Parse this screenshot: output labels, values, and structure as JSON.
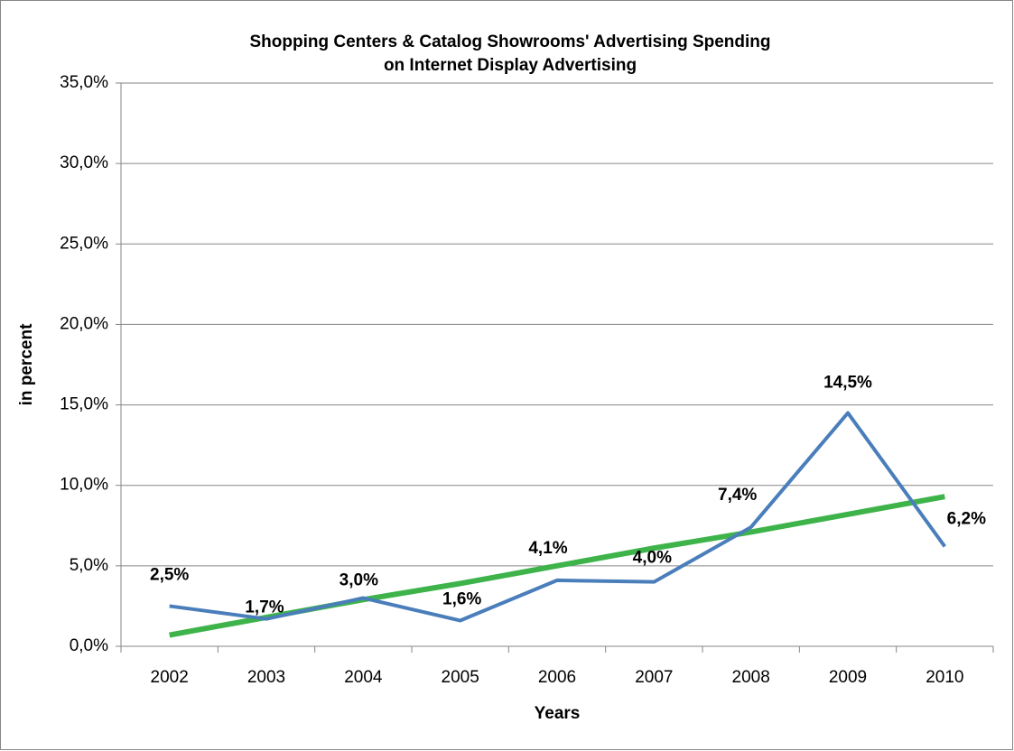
{
  "chart_data": {
    "type": "line",
    "title": [
      "Shopping Centers & Catalog Showrooms' Advertising Spending",
      "on Internet Display Advertising"
    ],
    "x_label": "Years",
    "y_label": "in percent",
    "categories": [
      "2002",
      "2003",
      "2004",
      "2005",
      "2006",
      "2007",
      "2008",
      "2009",
      "2010"
    ],
    "series": [
      {
        "color": "#4a7ebb",
        "values": [
          2.5,
          1.7,
          3.0,
          1.6,
          4.1,
          4.0,
          7.4,
          14.5,
          6.2
        ],
        "value_labels": [
          "2,5%",
          "1,7%",
          "3,0%",
          "1,6%",
          "4,1%",
          "4,0%",
          "7,4%",
          "14,5%",
          "6,2%"
        ]
      },
      {
        "color": "#3db34a",
        "values": [
          0.7,
          1.8,
          2.9,
          3.9,
          5.0,
          6.1,
          7.1,
          8.2,
          9.3
        ]
      }
    ],
    "ylim": [
      0,
      35
    ],
    "yticks": [
      {
        "value": 0,
        "label": "0,0%"
      },
      {
        "value": 5,
        "label": "5,0%"
      },
      {
        "value": 10,
        "label": "10,0%"
      },
      {
        "value": 15,
        "label": "15,0%"
      },
      {
        "value": 20,
        "label": "20,0%"
      },
      {
        "value": 25,
        "label": "25,0%"
      },
      {
        "value": 30,
        "label": "30,0%"
      },
      {
        "value": 35,
        "label": "35,0%"
      }
    ],
    "grid": true
  }
}
